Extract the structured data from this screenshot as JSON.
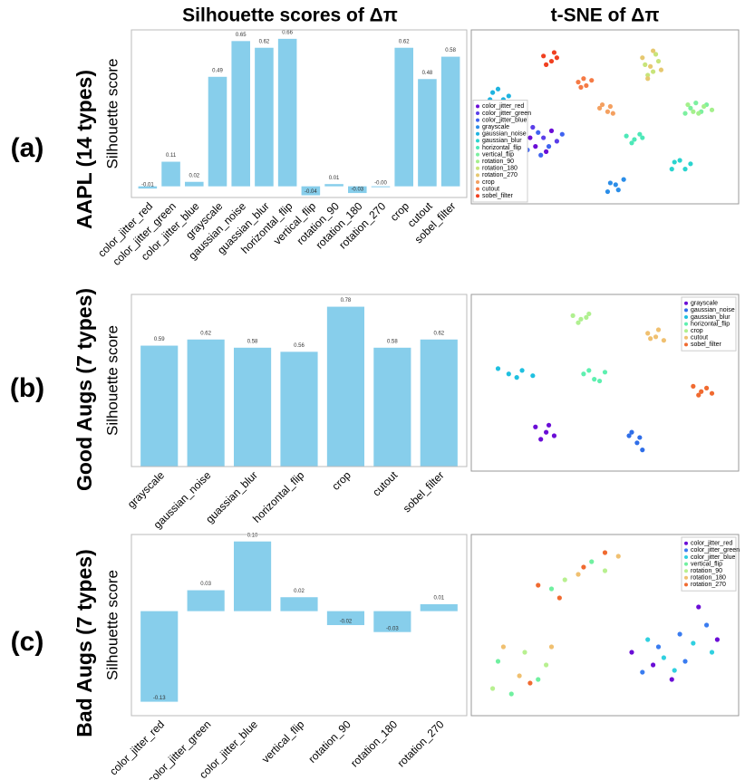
{
  "chart_data": [
    {
      "type": "bar",
      "title": "Silhouette scores of Δπ",
      "panel": "(a)",
      "row_label": "AAPL (14 types)",
      "ylabel": "Silhouette score",
      "color": "#87ceeb",
      "categories": [
        "color_jitter_red",
        "color_jitter_green",
        "color_jitter_blue",
        "grayscale",
        "gaussian_noise",
        "guassian_blur",
        "horizontal_flip",
        "vertical_flip",
        "rotation_90",
        "rotation_180",
        "rotation_270",
        "crop",
        "cutout",
        "sobel_filter"
      ],
      "values": [
        -0.01,
        0.11,
        0.02,
        0.49,
        0.65,
        0.62,
        0.66,
        -0.04,
        0.01,
        -0.03,
        -0.001,
        0.62,
        0.48,
        0.58
      ],
      "value_labels": [
        "-0.01",
        "0.11",
        "0.02",
        "0.49",
        "0.65",
        "0.62",
        "0.66",
        "-0.04",
        "0.01",
        "-0.03",
        "-0.00",
        "0.62",
        "0.48",
        "0.58"
      ],
      "ylim": [
        -0.05,
        0.7
      ]
    },
    {
      "type": "scatter",
      "title": "t-SNE of Δπ",
      "legend": "center left",
      "xlim": [
        0,
        100
      ],
      "ylim": [
        0,
        100
      ],
      "series": [
        {
          "name": "color_jitter_red",
          "color": "#6a0dd6",
          "x": [
            22,
            28,
            18,
            30,
            24
          ],
          "y": [
            38,
            30,
            40,
            42,
            33
          ]
        },
        {
          "name": "color_jitter_green",
          "color": "#5a3ee8",
          "x": [
            20,
            27,
            32,
            23,
            16
          ],
          "y": [
            35,
            38,
            36,
            44,
            37
          ]
        },
        {
          "name": "color_jitter_blue",
          "color": "#3f63f0",
          "x": [
            26,
            21,
            29,
            34,
            25
          ],
          "y": [
            28,
            31,
            33,
            40,
            41
          ]
        },
        {
          "name": "grayscale",
          "color": "#2a8de8",
          "x": [
            52,
            55,
            57,
            51,
            54
          ],
          "y": [
            12,
            8,
            14,
            7,
            11
          ]
        },
        {
          "name": "gaussian_noise",
          "color": "#1fb3e0",
          "x": [
            8,
            12,
            10,
            14,
            7
          ],
          "y": [
            64,
            60,
            66,
            62,
            60
          ]
        },
        {
          "name": "gaussian_blur",
          "color": "#2ad4cf",
          "x": [
            76,
            80,
            78,
            82,
            75
          ],
          "y": [
            24,
            20,
            25,
            23,
            20
          ]
        },
        {
          "name": "horizontal_flip",
          "color": "#4de8b8",
          "x": [
            58,
            61,
            64,
            60,
            63
          ],
          "y": [
            39,
            37,
            38,
            35,
            40
          ]
        },
        {
          "name": "vertical_flip",
          "color": "#7cf0a0",
          "x": [
            82,
            86,
            88,
            84,
            80
          ],
          "y": [
            55,
            53,
            57,
            58,
            52
          ]
        },
        {
          "name": "rotation_90",
          "color": "#a4f08c",
          "x": [
            83,
            87,
            90,
            81,
            85
          ],
          "y": [
            53,
            56,
            54,
            57,
            52
          ]
        },
        {
          "name": "rotation_180",
          "color": "#c8e47a",
          "x": [
            65,
            68,
            70,
            66,
            69
          ],
          "y": [
            80,
            76,
            82,
            74,
            86
          ]
        },
        {
          "name": "rotation_270",
          "color": "#e6c870",
          "x": [
            67,
            64,
            71,
            68,
            66
          ],
          "y": [
            79,
            84,
            77,
            88,
            72
          ]
        },
        {
          "name": "crop",
          "color": "#f4a060",
          "x": [
            48,
            51,
            53,
            49,
            52
          ],
          "y": [
            55,
            53,
            52,
            57,
            56
          ]
        },
        {
          "name": "cutout",
          "color": "#f57a45",
          "x": [
            40,
            43,
            45,
            41,
            42
          ],
          "y": [
            70,
            68,
            71,
            67,
            72
          ]
        },
        {
          "name": "sobel_filter",
          "color": "#f04020",
          "x": [
            27,
            30,
            32,
            28,
            31
          ],
          "y": [
            85,
            82,
            84,
            80,
            87
          ]
        }
      ]
    },
    {
      "type": "bar",
      "panel": "(b)",
      "row_label": "Good Augs (7 types)",
      "ylabel": "Silhouette score",
      "color": "#87ceeb",
      "categories": [
        "grayscale",
        "gaussian_noise",
        "guassian_blur",
        "horizontal_flip",
        "crop",
        "cutout",
        "sobel_filter"
      ],
      "values": [
        0.59,
        0.62,
        0.58,
        0.56,
        0.78,
        0.58,
        0.62
      ],
      "value_labels": [
        "0.59",
        "0.62",
        "0.58",
        "0.56",
        "0.78",
        "0.58",
        "0.62"
      ],
      "ylim": [
        0,
        0.84
      ]
    },
    {
      "type": "scatter",
      "legend": "upper right",
      "xlim": [
        0,
        100
      ],
      "ylim": [
        0,
        100
      ],
      "series": [
        {
          "name": "grayscale",
          "color": "#6a0dd6",
          "x": [
            24,
            28,
            31,
            26,
            29
          ],
          "y": [
            25,
            22,
            20,
            18,
            26
          ]
        },
        {
          "name": "gaussian_noise",
          "color": "#2f6ee8",
          "x": [
            59,
            62,
            64,
            60,
            63
          ],
          "y": [
            20,
            16,
            12,
            22,
            19
          ]
        },
        {
          "name": "gaussian_blur",
          "color": "#1fc0e0",
          "x": [
            10,
            14,
            19,
            23,
            17
          ],
          "y": [
            58,
            55,
            57,
            54,
            53
          ]
        },
        {
          "name": "horizontal_flip",
          "color": "#5ef0b0",
          "x": [
            42,
            46,
            50,
            48,
            44
          ],
          "y": [
            55,
            52,
            56,
            51,
            57
          ]
        },
        {
          "name": "crop",
          "color": "#b0f090",
          "x": [
            38,
            41,
            44,
            40,
            43
          ],
          "y": [
            88,
            86,
            89,
            84,
            87
          ]
        },
        {
          "name": "cutout",
          "color": "#f0c070",
          "x": [
            66,
            69,
            72,
            70,
            67
          ],
          "y": [
            78,
            76,
            74,
            80,
            75
          ]
        },
        {
          "name": "sobel_filter",
          "color": "#f06a30",
          "x": [
            83,
            86,
            90,
            85,
            88
          ],
          "y": [
            48,
            45,
            44,
            43,
            47
          ]
        }
      ]
    },
    {
      "type": "bar",
      "panel": "(c)",
      "row_label": "Bad Augs (7 types)",
      "ylabel": "Silhouette score",
      "color": "#87ceeb",
      "categories": [
        "color_jitter_red",
        "color_jitter_green",
        "color_jitter_blue",
        "vertical_flip",
        "rotation_90",
        "rotation_180",
        "rotation_270"
      ],
      "values": [
        -0.13,
        0.03,
        0.1,
        0.02,
        -0.02,
        -0.03,
        0.01
      ],
      "value_labels": [
        "-0.13",
        "0.03",
        "0.10",
        "0.02",
        "-0.02",
        "-0.03",
        "0.01"
      ],
      "ylim": [
        -0.15,
        0.11
      ]
    },
    {
      "type": "scatter",
      "legend": "upper right",
      "xlim": [
        0,
        100
      ],
      "ylim": [
        0,
        100
      ],
      "series": [
        {
          "name": "color_jitter_red",
          "color": "#6a0dd6",
          "x": [
            60,
            75,
            92,
            85,
            68
          ],
          "y": [
            35,
            20,
            42,
            60,
            28
          ]
        },
        {
          "name": "color_jitter_green",
          "color": "#3a7cf0",
          "x": [
            70,
            80,
            88,
            64,
            78
          ],
          "y": [
            38,
            30,
            50,
            24,
            45
          ]
        },
        {
          "name": "color_jitter_blue",
          "color": "#30d0e0",
          "x": [
            72,
            83,
            66,
            90,
            76
          ],
          "y": [
            32,
            40,
            42,
            35,
            25
          ]
        },
        {
          "name": "vertical_flip",
          "color": "#70f0a0",
          "x": [
            10,
            25,
            45,
            30,
            15
          ],
          "y": [
            30,
            20,
            85,
            70,
            12
          ]
        },
        {
          "name": "rotation_90",
          "color": "#b8f090",
          "x": [
            20,
            8,
            50,
            35,
            28
          ],
          "y": [
            35,
            15,
            80,
            75,
            28
          ]
        },
        {
          "name": "rotation_180",
          "color": "#f0c070",
          "x": [
            18,
            30,
            40,
            55,
            12
          ],
          "y": [
            22,
            38,
            78,
            88,
            38
          ]
        },
        {
          "name": "rotation_270",
          "color": "#f06a30",
          "x": [
            25,
            42,
            50,
            33,
            22
          ],
          "y": [
            72,
            82,
            90,
            65,
            18
          ]
        }
      ]
    }
  ]
}
